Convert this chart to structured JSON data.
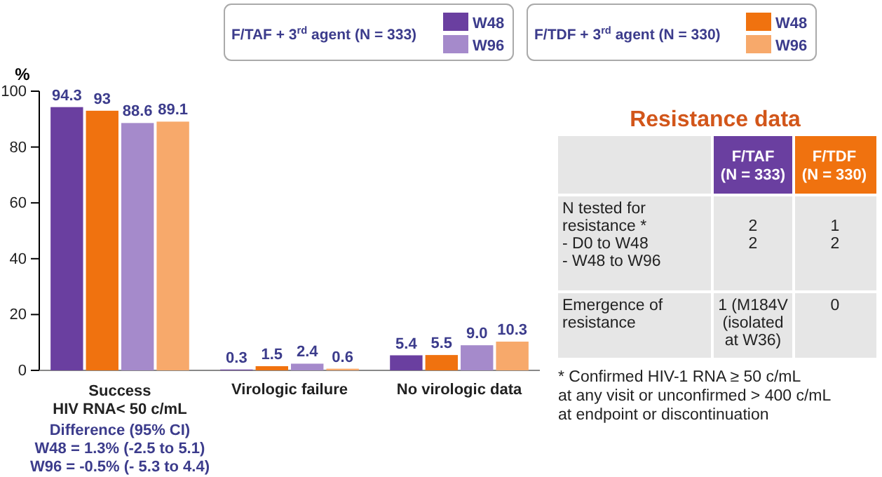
{
  "chart_data": [
    {
      "type": "bar",
      "ylabel": "%",
      "categories": [
        "Success\nHIV RNA< 50 c/mL",
        "Virologic failure",
        "No virologic data"
      ],
      "series": [
        {
          "name": "W48",
          "color": "#6a3fa0",
          "values": [
            94.3,
            0.3,
            5.4
          ],
          "value_labels": [
            "94.3",
            "0.3",
            "5.4"
          ]
        },
        {
          "name": "W48",
          "color": "#f0720f",
          "values": [
            93,
            1.5,
            5.5
          ],
          "value_labels": [
            "93",
            "1.5",
            "5.5"
          ]
        },
        {
          "name": "W96",
          "color": "#a58acb",
          "values": [
            88.6,
            2.4,
            9.0
          ],
          "value_labels": [
            "88.6",
            "2.4",
            "9.0"
          ]
        },
        {
          "name": "W96",
          "color": "#f7a96b",
          "values": [
            89.1,
            0.6,
            10.3
          ],
          "value_labels": [
            "89.1",
            "0.6",
            "10.3"
          ]
        }
      ],
      "ylim": [
        0,
        100
      ],
      "yticks": [
        0,
        20,
        40,
        60,
        80,
        100
      ],
      "grid": false,
      "legend": "top",
      "annotations": [
        "F/TAF + 3$^{rd}$ agent (N = 333)",
        "F/TDF + 3$^{rd}$ agent (N = 330)",
        "Difference (95% CI)\nW48 = 1.3% (-2.5 to 5.1)\nW96 = -0.5% (- 5.3 to 4.4)"
      ]
    },
    {
      "type": "other",
      "title": "Resistance data",
      "annotations": [
        "F/TAF\n(N = 333)",
        "F/TDF\n(N = 330)",
        "N tested for\nresistance *\n- D0 to W48\n- W48 to W96",
        "\n\n2\n2",
        "\n\n1\n2",
        "Emergence of\nresistance",
        "1 (M184V\n(isolated\nat W36)",
        "0",
        "* Confirmed HIV-1 RNA ≥ 50 c/mL\nat any visit or unconfirmed > 400 c/mL\nat endpoint or discontinuation"
      ]
    }
  ]
}
